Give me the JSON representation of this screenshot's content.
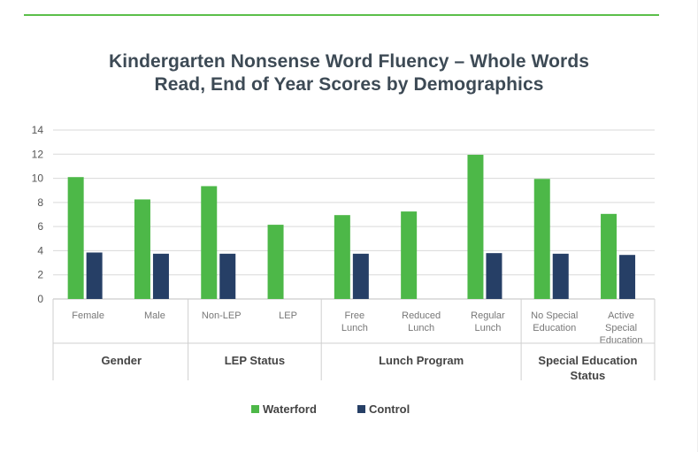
{
  "colors": {
    "accent": "#5bbf4a",
    "waterford": "#4db848",
    "control": "#263f66",
    "title": "#3d4a55",
    "grid": "#d9d9d9"
  },
  "chart_data": {
    "type": "bar",
    "title_lines": [
      "Kindergarten Nonsense Word Fluency – Whole Words",
      "Read, End of Year Scores by Demographics"
    ],
    "xlabel": "",
    "ylabel": "",
    "ylim": [
      0,
      14
    ],
    "yticks": [
      0,
      2,
      4,
      6,
      8,
      10,
      12,
      14
    ],
    "grid": true,
    "legend_position": "bottom-center",
    "categories": [
      [
        "Female"
      ],
      [
        "Male"
      ],
      [
        "Non-LEP"
      ],
      [
        "LEP"
      ],
      [
        "Free",
        "Lunch"
      ],
      [
        "Reduced",
        "Lunch"
      ],
      [
        "Regular",
        "Lunch"
      ],
      [
        "No Special",
        "Education"
      ],
      [
        "Active",
        "Special",
        "Education"
      ]
    ],
    "groups": [
      {
        "label": [
          "Gender"
        ],
        "count": 2
      },
      {
        "label": [
          "LEP Status"
        ],
        "count": 2
      },
      {
        "label": [
          "Lunch Program"
        ],
        "count": 3
      },
      {
        "label": [
          "Special Education",
          "Status"
        ],
        "count": 2
      }
    ],
    "series": [
      {
        "name": "Waterford",
        "values": [
          10.1,
          8.25,
          9.35,
          6.15,
          6.95,
          7.25,
          11.95,
          9.95,
          7.05
        ]
      },
      {
        "name": "Control",
        "values": [
          3.85,
          3.75,
          3.75,
          null,
          3.75,
          null,
          3.8,
          3.75,
          3.65
        ]
      }
    ]
  }
}
